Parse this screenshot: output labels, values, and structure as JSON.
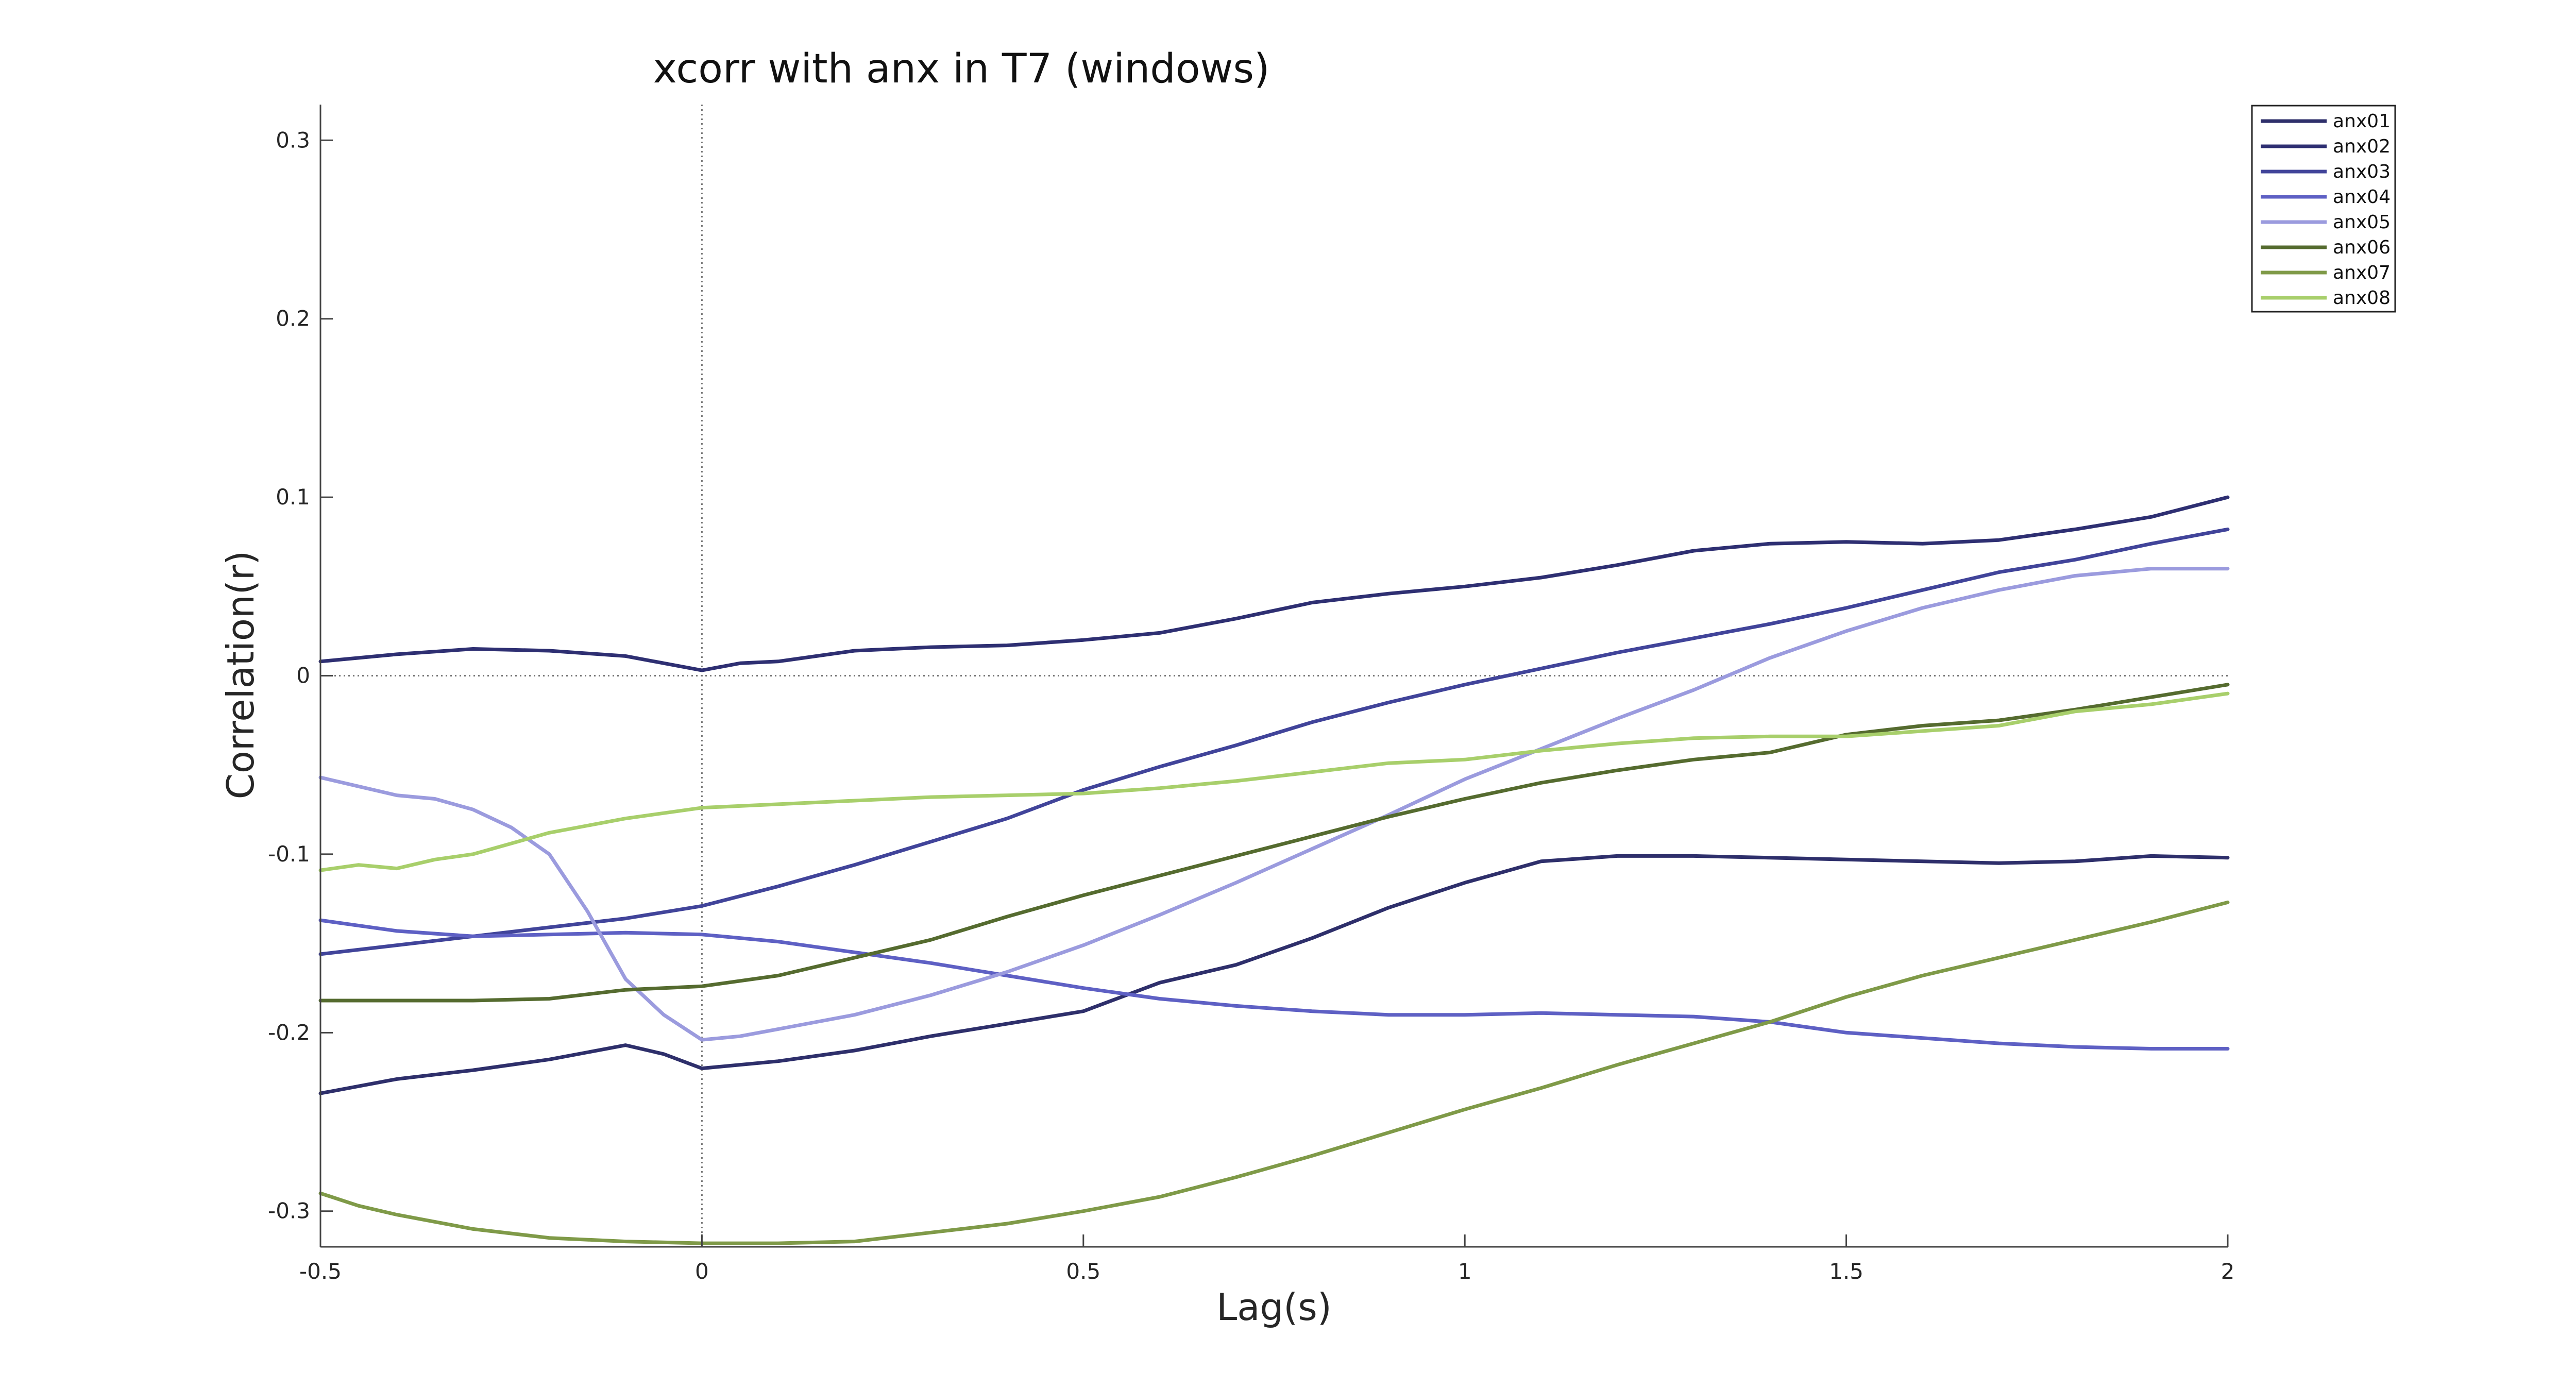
{
  "chart_data": {
    "type": "line",
    "title": "xcorr with anx in T7 (windows)",
    "xlabel": "Lag(s)",
    "ylabel": "Correlation(r)",
    "xlim": [
      -0.5,
      2
    ],
    "ylim": [
      -0.32,
      0.32
    ],
    "xticks": [
      -0.5,
      0,
      0.5,
      1,
      1.5,
      2
    ],
    "xtick_labels": [
      "-0.5",
      "0",
      "0.5",
      "1",
      "1.5",
      "2"
    ],
    "yticks": [
      0.3,
      0.2,
      0.1,
      0,
      -0.1,
      -0.2,
      -0.3
    ],
    "ytick_labels": [
      "0.3",
      "0.2",
      "0.1",
      "0",
      "-0.1",
      "-0.2",
      "-0.3"
    ],
    "reference_lines": {
      "x": 0,
      "y": 0,
      "style": "dotted"
    },
    "legend_position": "top-right",
    "grid": false,
    "series": [
      {
        "name": "anx01",
        "color": "#2e2f6b",
        "points": [
          [
            -0.5,
            -0.234
          ],
          [
            -0.4,
            -0.226
          ],
          [
            -0.3,
            -0.221
          ],
          [
            -0.2,
            -0.215
          ],
          [
            -0.1,
            -0.207
          ],
          [
            -0.05,
            -0.212
          ],
          [
            0,
            -0.22
          ],
          [
            0.1,
            -0.216
          ],
          [
            0.2,
            -0.21
          ],
          [
            0.3,
            -0.202
          ],
          [
            0.4,
            -0.195
          ],
          [
            0.5,
            -0.188
          ],
          [
            0.55,
            -0.18
          ],
          [
            0.6,
            -0.172
          ],
          [
            0.7,
            -0.162
          ],
          [
            0.8,
            -0.147
          ],
          [
            0.9,
            -0.13
          ],
          [
            1,
            -0.116
          ],
          [
            1.1,
            -0.104
          ],
          [
            1.2,
            -0.101
          ],
          [
            1.3,
            -0.101
          ],
          [
            1.4,
            -0.102
          ],
          [
            1.5,
            -0.103
          ],
          [
            1.6,
            -0.104
          ],
          [
            1.7,
            -0.105
          ],
          [
            1.8,
            -0.104
          ],
          [
            1.9,
            -0.101
          ],
          [
            2,
            -0.102
          ]
        ]
      },
      {
        "name": "anx02",
        "color": "#2e2f72",
        "points": [
          [
            -0.5,
            0.008
          ],
          [
            -0.4,
            0.012
          ],
          [
            -0.3,
            0.015
          ],
          [
            -0.2,
            0.014
          ],
          [
            -0.1,
            0.011
          ],
          [
            0,
            0.003
          ],
          [
            0.05,
            0.007
          ],
          [
            0.1,
            0.008
          ],
          [
            0.2,
            0.014
          ],
          [
            0.3,
            0.016
          ],
          [
            0.4,
            0.017
          ],
          [
            0.5,
            0.02
          ],
          [
            0.6,
            0.024
          ],
          [
            0.7,
            0.032
          ],
          [
            0.8,
            0.041
          ],
          [
            0.9,
            0.046
          ],
          [
            1,
            0.05
          ],
          [
            1.1,
            0.055
          ],
          [
            1.2,
            0.062
          ],
          [
            1.3,
            0.07
          ],
          [
            1.4,
            0.074
          ],
          [
            1.5,
            0.075
          ],
          [
            1.6,
            0.074
          ],
          [
            1.7,
            0.076
          ],
          [
            1.8,
            0.082
          ],
          [
            1.9,
            0.089
          ],
          [
            2,
            0.1
          ]
        ]
      },
      {
        "name": "anx03",
        "color": "#41449a",
        "points": [
          [
            -0.5,
            -0.156
          ],
          [
            -0.4,
            -0.151
          ],
          [
            -0.3,
            -0.146
          ],
          [
            -0.2,
            -0.141
          ],
          [
            -0.1,
            -0.136
          ],
          [
            0,
            -0.129
          ],
          [
            0.1,
            -0.118
          ],
          [
            0.2,
            -0.106
          ],
          [
            0.3,
            -0.093
          ],
          [
            0.4,
            -0.08
          ],
          [
            0.5,
            -0.064
          ],
          [
            0.6,
            -0.051
          ],
          [
            0.7,
            -0.039
          ],
          [
            0.8,
            -0.026
          ],
          [
            0.9,
            -0.015
          ],
          [
            1,
            -0.005
          ],
          [
            1.1,
            0.004
          ],
          [
            1.2,
            0.013
          ],
          [
            1.3,
            0.021
          ],
          [
            1.4,
            0.029
          ],
          [
            1.5,
            0.038
          ],
          [
            1.6,
            0.048
          ],
          [
            1.7,
            0.058
          ],
          [
            1.8,
            0.065
          ],
          [
            1.9,
            0.074
          ],
          [
            2,
            0.082
          ]
        ]
      },
      {
        "name": "anx04",
        "color": "#5e60c4",
        "points": [
          [
            -0.5,
            -0.137
          ],
          [
            -0.4,
            -0.143
          ],
          [
            -0.3,
            -0.146
          ],
          [
            -0.2,
            -0.145
          ],
          [
            -0.1,
            -0.144
          ],
          [
            0,
            -0.145
          ],
          [
            0.1,
            -0.149
          ],
          [
            0.2,
            -0.155
          ],
          [
            0.3,
            -0.161
          ],
          [
            0.4,
            -0.168
          ],
          [
            0.5,
            -0.175
          ],
          [
            0.6,
            -0.181
          ],
          [
            0.7,
            -0.185
          ],
          [
            0.8,
            -0.188
          ],
          [
            0.9,
            -0.19
          ],
          [
            1,
            -0.19
          ],
          [
            1.1,
            -0.189
          ],
          [
            1.2,
            -0.19
          ],
          [
            1.3,
            -0.191
          ],
          [
            1.4,
            -0.194
          ],
          [
            1.5,
            -0.2
          ],
          [
            1.6,
            -0.203
          ],
          [
            1.7,
            -0.206
          ],
          [
            1.8,
            -0.208
          ],
          [
            1.9,
            -0.209
          ],
          [
            2,
            -0.209
          ]
        ]
      },
      {
        "name": "anx05",
        "color": "#9b9bde",
        "points": [
          [
            -0.5,
            -0.057
          ],
          [
            -0.45,
            -0.062
          ],
          [
            -0.4,
            -0.067
          ],
          [
            -0.35,
            -0.069
          ],
          [
            -0.3,
            -0.075
          ],
          [
            -0.25,
            -0.085
          ],
          [
            -0.2,
            -0.1
          ],
          [
            -0.15,
            -0.132
          ],
          [
            -0.1,
            -0.17
          ],
          [
            -0.05,
            -0.19
          ],
          [
            0,
            -0.204
          ],
          [
            0.05,
            -0.202
          ],
          [
            0.1,
            -0.198
          ],
          [
            0.2,
            -0.19
          ],
          [
            0.3,
            -0.179
          ],
          [
            0.4,
            -0.166
          ],
          [
            0.5,
            -0.151
          ],
          [
            0.6,
            -0.134
          ],
          [
            0.7,
            -0.116
          ],
          [
            0.8,
            -0.097
          ],
          [
            0.9,
            -0.078
          ],
          [
            1,
            -0.058
          ],
          [
            1.1,
            -0.041
          ],
          [
            1.2,
            -0.024
          ],
          [
            1.3,
            -0.008
          ],
          [
            1.4,
            0.01
          ],
          [
            1.5,
            0.025
          ],
          [
            1.6,
            0.038
          ],
          [
            1.7,
            0.048
          ],
          [
            1.8,
            0.056
          ],
          [
            1.9,
            0.06
          ],
          [
            2,
            0.06
          ]
        ]
      },
      {
        "name": "anx06",
        "color": "#556b2f",
        "points": [
          [
            -0.5,
            -0.182
          ],
          [
            -0.4,
            -0.182
          ],
          [
            -0.3,
            -0.182
          ],
          [
            -0.2,
            -0.181
          ],
          [
            -0.1,
            -0.176
          ],
          [
            0,
            -0.174
          ],
          [
            0.1,
            -0.168
          ],
          [
            0.2,
            -0.158
          ],
          [
            0.3,
            -0.148
          ],
          [
            0.4,
            -0.135
          ],
          [
            0.5,
            -0.123
          ],
          [
            0.6,
            -0.112
          ],
          [
            0.7,
            -0.101
          ],
          [
            0.8,
            -0.09
          ],
          [
            0.9,
            -0.079
          ],
          [
            1,
            -0.069
          ],
          [
            1.1,
            -0.06
          ],
          [
            1.2,
            -0.053
          ],
          [
            1.3,
            -0.047
          ],
          [
            1.4,
            -0.043
          ],
          [
            1.5,
            -0.033
          ],
          [
            1.6,
            -0.028
          ],
          [
            1.7,
            -0.025
          ],
          [
            1.8,
            -0.019
          ],
          [
            1.9,
            -0.012
          ],
          [
            2,
            -0.005
          ]
        ]
      },
      {
        "name": "anx07",
        "color": "#7f9a48",
        "points": [
          [
            -0.5,
            -0.29
          ],
          [
            -0.45,
            -0.297
          ],
          [
            -0.4,
            -0.302
          ],
          [
            -0.3,
            -0.31
          ],
          [
            -0.2,
            -0.315
          ],
          [
            -0.1,
            -0.317
          ],
          [
            0,
            -0.318
          ],
          [
            0.1,
            -0.318
          ],
          [
            0.2,
            -0.317
          ],
          [
            0.3,
            -0.312
          ],
          [
            0.4,
            -0.307
          ],
          [
            0.5,
            -0.3
          ],
          [
            0.6,
            -0.292
          ],
          [
            0.7,
            -0.281
          ],
          [
            0.8,
            -0.269
          ],
          [
            0.9,
            -0.256
          ],
          [
            1,
            -0.243
          ],
          [
            1.1,
            -0.231
          ],
          [
            1.2,
            -0.218
          ],
          [
            1.3,
            -0.206
          ],
          [
            1.4,
            -0.194
          ],
          [
            1.5,
            -0.18
          ],
          [
            1.6,
            -0.168
          ],
          [
            1.7,
            -0.158
          ],
          [
            1.8,
            -0.148
          ],
          [
            1.9,
            -0.138
          ],
          [
            2,
            -0.127
          ]
        ]
      },
      {
        "name": "anx08",
        "color": "#a8cf6b",
        "points": [
          [
            -0.5,
            -0.109
          ],
          [
            -0.45,
            -0.106
          ],
          [
            -0.4,
            -0.108
          ],
          [
            -0.35,
            -0.103
          ],
          [
            -0.3,
            -0.1
          ],
          [
            -0.25,
            -0.094
          ],
          [
            -0.2,
            -0.088
          ],
          [
            -0.1,
            -0.08
          ],
          [
            0,
            -0.074
          ],
          [
            0.1,
            -0.072
          ],
          [
            0.2,
            -0.07
          ],
          [
            0.3,
            -0.068
          ],
          [
            0.4,
            -0.067
          ],
          [
            0.5,
            -0.066
          ],
          [
            0.6,
            -0.063
          ],
          [
            0.7,
            -0.059
          ],
          [
            0.8,
            -0.054
          ],
          [
            0.9,
            -0.049
          ],
          [
            1,
            -0.047
          ],
          [
            1.1,
            -0.042
          ],
          [
            1.2,
            -0.038
          ],
          [
            1.3,
            -0.035
          ],
          [
            1.4,
            -0.034
          ],
          [
            1.5,
            -0.034
          ],
          [
            1.6,
            -0.031
          ],
          [
            1.7,
            -0.028
          ],
          [
            1.8,
            -0.02
          ],
          [
            1.9,
            -0.016
          ],
          [
            2,
            -0.01
          ]
        ]
      }
    ]
  }
}
